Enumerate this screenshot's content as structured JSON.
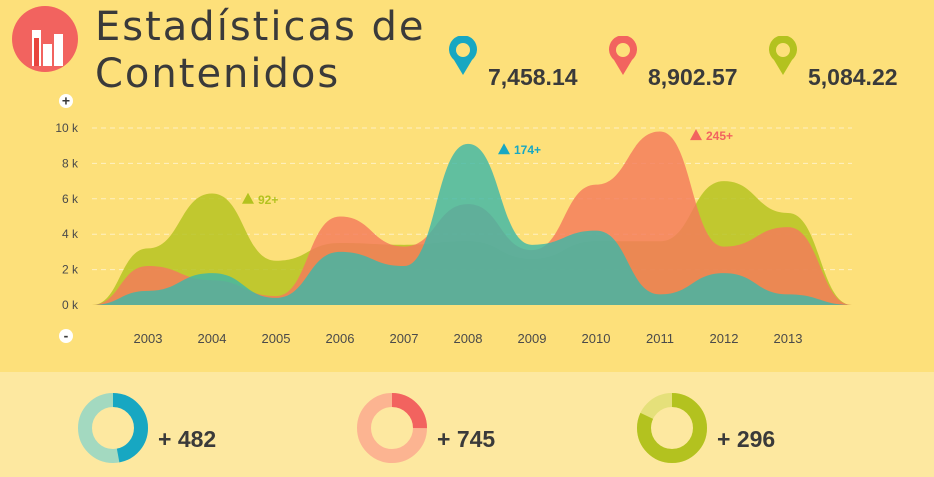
{
  "title": {
    "line1": "Estadísticas de",
    "line2": "Contenidos"
  },
  "stats": [
    {
      "value": "7,458.14",
      "color": "#17a7c2"
    },
    {
      "value": "8,902.57",
      "color": "#f2635f"
    },
    {
      "value": "5,084.22",
      "color": "#b3c21f"
    }
  ],
  "controls": {
    "plus": "+",
    "minus": "-"
  },
  "chart_data": {
    "type": "area",
    "categories": [
      "2003",
      "2004",
      "2005",
      "2006",
      "2007",
      "2008",
      "2009",
      "2010",
      "2011",
      "2012",
      "2013"
    ],
    "y_ticks": [
      "0 k",
      "2 k",
      "4 k",
      "6 k",
      "8 k",
      "10 k"
    ],
    "ylim": [
      0,
      10
    ],
    "grid": true,
    "series": [
      {
        "color": "#b3c21f",
        "values": [
          3.2,
          6.3,
          2.5,
          3.5,
          3.4,
          3.6,
          2.6,
          3.6,
          3.6,
          7.0,
          5.2
        ]
      },
      {
        "color": "#f47a5c",
        "values": [
          2.2,
          1.4,
          0.5,
          5.0,
          3.3,
          5.7,
          3.1,
          6.8,
          9.8,
          3.3,
          4.4
        ]
      },
      {
        "color": "#3eb7a7",
        "values": [
          0.8,
          1.8,
          0.4,
          3.0,
          2.2,
          9.1,
          3.4,
          4.2,
          0.6,
          1.8,
          0.6
        ]
      }
    ],
    "annotations": [
      {
        "text": "92+",
        "category": "2004",
        "y": 6.0,
        "color": "#b3c21f"
      },
      {
        "text": "174+",
        "category": "2008",
        "y": 8.8,
        "color": "#17a7c2"
      },
      {
        "text": "245+",
        "category": "2011",
        "y": 9.6,
        "color": "#f2635f"
      }
    ]
  },
  "donuts": [
    {
      "value": "+ 482",
      "fraction": 0.47,
      "main": "#17a7c2",
      "rest": "#a3d9c0"
    },
    {
      "value": "+ 745",
      "fraction": 0.25,
      "main": "#f2635f",
      "rest": "#fcb491"
    },
    {
      "value": "+ 296",
      "fraction": 0.82,
      "main": "#b3c21f",
      "rest": "#e5e07a"
    }
  ]
}
